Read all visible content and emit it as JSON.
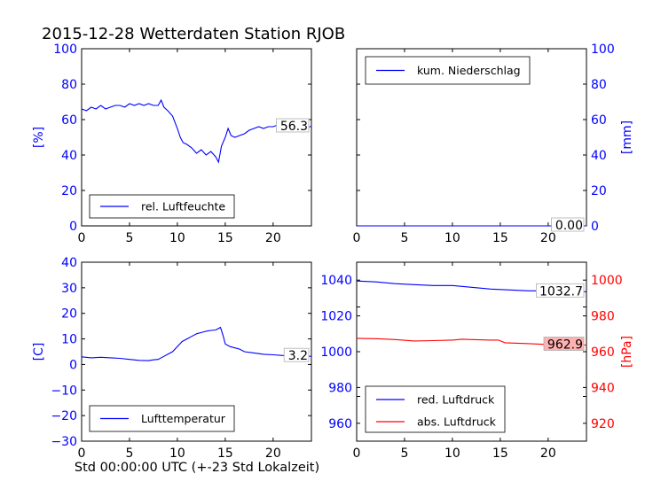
{
  "figure_title": "2015-12-28 Wetterdaten Station RJOB",
  "footer_xlabel": "Std 00:00:00 UTC (+-23 Std Lokalzeit)",
  "colors": {
    "blue": "#0000ff",
    "red": "#ff0000",
    "black": "#000000",
    "highlight": "#ffb0b0"
  },
  "chart_data": [
    {
      "id": "humidity",
      "type": "line",
      "ylabel": "[%]",
      "ylabel_color": "#0000ff",
      "xlim": [
        0,
        24
      ],
      "ylim": [
        0,
        100
      ],
      "xticks": [
        "0",
        "5",
        "10",
        "15",
        "20"
      ],
      "yticks": [
        "0",
        "20",
        "40",
        "60",
        "80",
        "100"
      ],
      "legend": {
        "position": "lower-left",
        "entries": [
          "rel. Luftfeuchte"
        ]
      },
      "series": [
        {
          "name": "rel. Luftfeuchte",
          "color": "#0000ff",
          "x": [
            0,
            0.5,
            1,
            1.5,
            2,
            2.5,
            3,
            3.5,
            4,
            4.5,
            5,
            5.5,
            6,
            6.5,
            7,
            7.5,
            8,
            8.3,
            8.6,
            9,
            9.5,
            10,
            10.3,
            10.6,
            11,
            11.5,
            12,
            12.5,
            13,
            13.5,
            14,
            14.3,
            14.6,
            15,
            15.3,
            15.6,
            16,
            16.5,
            17,
            17.5,
            18,
            18.5,
            19,
            19.5,
            20,
            20.5,
            21,
            21.5,
            22,
            22.5,
            23,
            23.5,
            24
          ],
          "y": [
            66,
            65,
            67,
            66,
            68,
            66,
            67,
            68,
            68,
            67,
            69,
            68,
            69,
            68,
            69,
            68,
            68,
            71,
            67,
            65,
            62,
            55,
            50,
            47,
            46,
            44,
            41,
            43,
            40,
            42,
            39,
            36,
            45,
            50,
            55,
            51,
            50,
            51,
            52,
            54,
            55,
            56,
            55,
            56,
            56,
            57,
            57,
            56,
            57,
            57,
            57,
            56,
            56
          ]
        }
      ],
      "last_value_label": "56.3"
    },
    {
      "id": "precipitation",
      "type": "line",
      "ylabel": "[mm]",
      "ylabel_color": "#0000ff",
      "xlim": [
        0,
        24
      ],
      "ylim": [
        0,
        100
      ],
      "xticks": [
        "0",
        "5",
        "10",
        "15",
        "20"
      ],
      "yticks": [
        "0",
        "20",
        "40",
        "60",
        "80",
        "100"
      ],
      "legend": {
        "position": "upper-left",
        "entries": [
          "kum. Niederschlag"
        ]
      },
      "series": [
        {
          "name": "kum. Niederschlag",
          "color": "#0000ff",
          "x": [
            0,
            24
          ],
          "y": [
            0,
            0
          ]
        }
      ],
      "last_value_label": "0.00"
    },
    {
      "id": "temperature",
      "type": "line",
      "ylabel": "[C]",
      "ylabel_color": "#0000ff",
      "xlim": [
        0,
        24
      ],
      "ylim": [
        -30,
        40
      ],
      "xticks": [
        "0",
        "5",
        "10",
        "15",
        "20"
      ],
      "yticks": [
        "−30",
        "−20",
        "−10",
        "0",
        "10",
        "20",
        "30",
        "40"
      ],
      "legend": {
        "position": "lower-left",
        "entries": [
          "Lufttemperatur"
        ]
      },
      "series": [
        {
          "name": "Lufttemperatur",
          "color": "#0000ff",
          "x": [
            0,
            1,
            2,
            3,
            4,
            5,
            6,
            7,
            7.5,
            8,
            8.5,
            9,
            9.5,
            10,
            10.5,
            11,
            11.5,
            12,
            12.5,
            13,
            13.5,
            14,
            14.5,
            14.8,
            15,
            15.5,
            16,
            16.5,
            17,
            18,
            19,
            20,
            21,
            22,
            23,
            24
          ],
          "y": [
            3,
            2.6,
            2.8,
            2.6,
            2.4,
            2,
            1.6,
            1.5,
            1.8,
            2,
            3,
            4,
            5,
            7,
            9,
            10,
            11,
            12,
            12.5,
            13,
            13.3,
            13.5,
            14.5,
            11,
            8,
            7,
            6.5,
            6,
            5,
            4.5,
            4,
            3.8,
            3.5,
            3.3,
            3.2,
            3.2
          ]
        }
      ],
      "last_value_label": "3.2"
    },
    {
      "id": "pressure",
      "type": "line",
      "ylabel": "[hPa]",
      "ylabel_color": "#ff0000",
      "xlim": [
        0,
        24
      ],
      "ylim": [
        950,
        1050
      ],
      "ylim_right": [
        910,
        1010
      ],
      "xticks": [
        "0",
        "5",
        "10",
        "15",
        "20"
      ],
      "yticks": [
        "960",
        "980",
        "1000",
        "1020",
        "1040"
      ],
      "yticks_right": [
        "920",
        "940",
        "960",
        "980",
        "1000"
      ],
      "legend": {
        "position": "lower-left",
        "entries": [
          "red. Luftdruck",
          "abs. Luftdruck"
        ]
      },
      "series": [
        {
          "name": "red. Luftdruck",
          "color": "#0000ff",
          "axis": "left",
          "x": [
            0,
            2,
            4,
            6,
            8,
            10,
            12,
            14,
            16,
            18,
            20,
            22,
            24
          ],
          "y": [
            1039.5,
            1039,
            1038,
            1037.5,
            1037,
            1037,
            1036,
            1035,
            1034.5,
            1034,
            1034,
            1033.5,
            1033.5
          ]
        },
        {
          "name": "abs. Luftdruck",
          "color": "#ff0000",
          "axis": "right",
          "x": [
            0,
            2,
            4,
            6,
            8,
            10,
            11,
            12,
            14,
            14.8,
            15.5,
            18,
            20,
            22,
            24
          ],
          "y": [
            967.5,
            967.3,
            966.8,
            966,
            966.2,
            966.5,
            967,
            966.8,
            966.5,
            966.5,
            965,
            964.5,
            964,
            963.8,
            963.7
          ]
        }
      ],
      "last_value_labels": [
        "1032.7",
        "962.9"
      ]
    }
  ]
}
